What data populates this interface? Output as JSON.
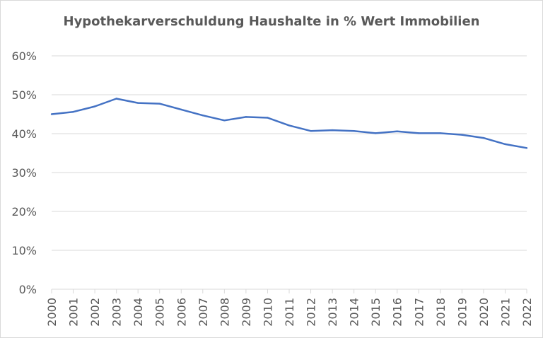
{
  "chart_data": {
    "type": "line",
    "title": "Hypothekarverschuldung Haushalte in % Wert Immobilien",
    "xlabel": "",
    "ylabel": "",
    "x": [
      "2000",
      "2001",
      "2002",
      "2003",
      "2004",
      "2005",
      "2006",
      "2007",
      "2008",
      "2009",
      "2010",
      "2011",
      "2012",
      "2013",
      "2014",
      "2015",
      "2016",
      "2017",
      "2018",
      "2019",
      "2020",
      "2021",
      "2022"
    ],
    "series": [
      {
        "values": [
          45.0,
          45.6,
          47.0,
          49.0,
          47.9,
          47.7,
          46.2,
          44.7,
          43.4,
          44.3,
          44.1,
          42.1,
          40.7,
          40.9,
          40.7,
          40.1,
          40.6,
          40.1,
          40.1,
          39.7,
          38.9,
          37.3,
          36.3
        ]
      }
    ],
    "ylim": [
      0,
      60
    ],
    "yticks": [
      "0%",
      "10%",
      "20%",
      "30%",
      "40%",
      "50%",
      "60%"
    ],
    "grid": true,
    "line_color": "#4472c4",
    "grid_color": "#d9d9d9",
    "legend": "none"
  }
}
